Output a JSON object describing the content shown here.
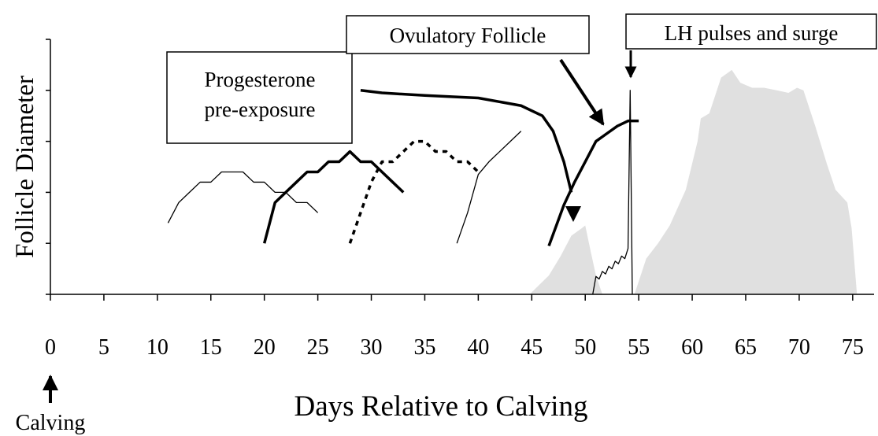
{
  "chart_data": {
    "type": "line",
    "xlabel": "Days Relative to Calving",
    "ylabel": "Follicle Diameter",
    "xlim": [
      0,
      77
    ],
    "ylim": [
      0,
      5
    ],
    "xticks": [
      0,
      5,
      10,
      15,
      20,
      25,
      30,
      35,
      40,
      45,
      50,
      55,
      60,
      65,
      70,
      75
    ],
    "yticks": [
      0,
      1,
      2,
      3,
      4,
      5
    ],
    "annotations": {
      "progesterone": [
        "Progesterone",
        "pre-exposure"
      ],
      "ovulatory": "Ovulatory Follicle",
      "lh": "LH pulses and surge",
      "calving": "Calving"
    },
    "series": [
      {
        "style": "area",
        "color": "#e0e0e0",
        "x": [
          44.8,
          46.6,
          47.7,
          48.7,
          49.7,
          50,
          50.5,
          51,
          51.6
        ],
        "values": [
          0,
          0.37,
          0.75,
          1.15,
          1.3,
          1.35,
          0.85,
          0.37,
          0
        ]
      },
      {
        "style": "area",
        "color": "#e0e0e0",
        "x": [
          54.6,
          55.7,
          56.8,
          57.9,
          59.4,
          60.5,
          60.8,
          61.6,
          62.7,
          63.7,
          64.5,
          65.6,
          66.7,
          67.9,
          69,
          69.8,
          70.4,
          71.5,
          72.6,
          73.4,
          74.5,
          74.9,
          75.4
        ],
        "values": [
          0,
          0.7,
          1.0,
          1.35,
          2.05,
          3.0,
          3.45,
          3.55,
          4.25,
          4.4,
          4.15,
          4.05,
          4.05,
          4.0,
          3.95,
          4.05,
          4.0,
          3.3,
          2.55,
          2.05,
          1.8,
          1.3,
          0
        ]
      },
      {
        "style": "thin",
        "color": "#000000",
        "x": [
          11,
          12,
          13,
          14,
          15,
          16,
          17,
          18,
          19,
          20,
          21,
          22,
          23,
          24,
          25
        ],
        "values": [
          1.4,
          1.8,
          2.0,
          2.2,
          2.2,
          2.4,
          2.4,
          2.4,
          2.2,
          2.2,
          2.0,
          2.0,
          1.8,
          1.8,
          1.6
        ]
      },
      {
        "style": "thick",
        "color": "#000000",
        "x": [
          20,
          21,
          22,
          23,
          24,
          25,
          26,
          27,
          28,
          29,
          30,
          31,
          32,
          33
        ],
        "values": [
          1.0,
          1.8,
          2.0,
          2.2,
          2.4,
          2.4,
          2.6,
          2.6,
          2.8,
          2.6,
          2.6,
          2.4,
          2.2,
          2.0
        ]
      },
      {
        "style": "dotted",
        "color": "#000000",
        "x": [
          28,
          29,
          30,
          31,
          32,
          33,
          34,
          35,
          36,
          37,
          38,
          39,
          40
        ],
        "values": [
          1.0,
          1.6,
          2.2,
          2.6,
          2.6,
          2.8,
          3.0,
          3.0,
          2.8,
          2.8,
          2.6,
          2.6,
          2.4
        ]
      },
      {
        "style": "thin",
        "color": "#000000",
        "x": [
          38,
          39,
          40,
          41,
          42,
          43,
          44
        ],
        "values": [
          1.0,
          1.6,
          2.35,
          2.6,
          2.8,
          3.0,
          3.2
        ]
      },
      {
        "style": "thick",
        "color": "#000000",
        "x": [
          29,
          31,
          35,
          40,
          44,
          46,
          47,
          48,
          48.7
        ],
        "values": [
          4.0,
          3.95,
          3.9,
          3.85,
          3.7,
          3.5,
          3.2,
          2.6,
          2.0
        ]
      },
      {
        "style": "thick",
        "color": "#000000",
        "x": [
          46.6,
          48,
          49,
          50,
          51,
          52,
          53,
          54,
          55
        ],
        "values": [
          0.95,
          1.75,
          2.2,
          2.6,
          3.0,
          3.15,
          3.3,
          3.4,
          3.4
        ]
      },
      {
        "style": "thin",
        "color": "#000000",
        "x": [
          50.7,
          51,
          51.3,
          51.6,
          51.9,
          52.2,
          52.5,
          52.8,
          53.1,
          53.4,
          53.7,
          54,
          54.2,
          54.4
        ],
        "values": [
          0,
          0.35,
          0.3,
          0.45,
          0.4,
          0.55,
          0.5,
          0.65,
          0.6,
          0.75,
          0.7,
          0.9,
          4.0,
          0
        ]
      }
    ]
  }
}
